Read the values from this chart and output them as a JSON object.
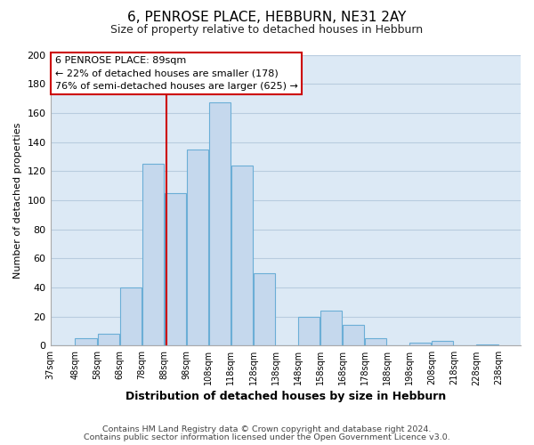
{
  "title": "6, PENROSE PLACE, HEBBURN, NE31 2AY",
  "subtitle": "Size of property relative to detached houses in Hebburn",
  "xlabel": "Distribution of detached houses by size in Hebburn",
  "ylabel": "Number of detached properties",
  "bar_left_edges": [
    37,
    48,
    58,
    68,
    78,
    88,
    98,
    108,
    118,
    128,
    138,
    148,
    158,
    168,
    178,
    188,
    198,
    208,
    218,
    228
  ],
  "bar_heights": [
    0,
    5,
    8,
    40,
    125,
    105,
    135,
    167,
    124,
    50,
    0,
    20,
    24,
    14,
    5,
    0,
    2,
    3,
    0,
    1
  ],
  "bar_color": "#c5d8ed",
  "bar_edge_color": "#6baed6",
  "vline_x": 89,
  "vline_color": "#cc0000",
  "ylim": [
    0,
    200
  ],
  "yticks": [
    0,
    20,
    40,
    60,
    80,
    100,
    120,
    140,
    160,
    180,
    200
  ],
  "xtick_labels": [
    "37sqm",
    "48sqm",
    "58sqm",
    "68sqm",
    "78sqm",
    "88sqm",
    "98sqm",
    "108sqm",
    "118sqm",
    "128sqm",
    "138sqm",
    "148sqm",
    "158sqm",
    "168sqm",
    "178sqm",
    "188sqm",
    "198sqm",
    "208sqm",
    "218sqm",
    "228sqm",
    "238sqm"
  ],
  "annotation_line1": "6 PENROSE PLACE: 89sqm",
  "annotation_line2": "← 22% of detached houses are smaller (178)",
  "annotation_line3": "76% of semi-detached houses are larger (625) →",
  "footer_line1": "Contains HM Land Registry data © Crown copyright and database right 2024.",
  "footer_line2": "Contains public sector information licensed under the Open Government Licence v3.0.",
  "bg_color": "#ffffff",
  "plot_bg_color": "#dce9f5",
  "grid_color": "#b8ccdf",
  "title_fontsize": 11,
  "subtitle_fontsize": 9,
  "ylabel_fontsize": 8,
  "xlabel_fontsize": 9,
  "ytick_fontsize": 8,
  "xtick_fontsize": 7
}
